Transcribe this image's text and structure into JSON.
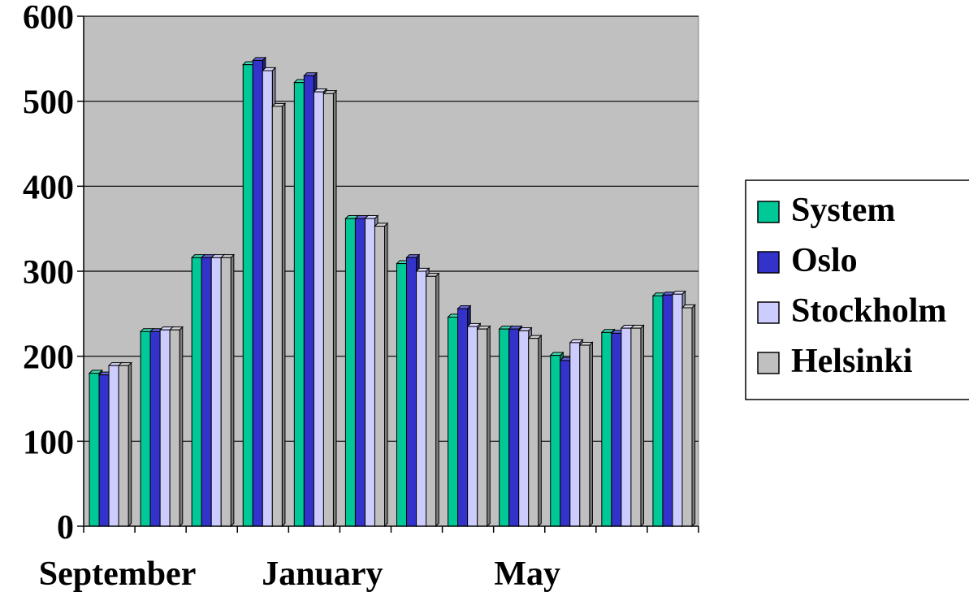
{
  "chart_data": {
    "type": "bar",
    "title": "",
    "xlabel": "",
    "ylabel": "",
    "ylim": [
      0,
      600
    ],
    "y_ticks": [
      "0",
      "100",
      "200",
      "300",
      "400",
      "500",
      "600"
    ],
    "x_tick_labels": [
      {
        "label": "September",
        "category_index": 0
      },
      {
        "label": "January",
        "category_index": 4
      },
      {
        "label": "May",
        "category_index": 8
      }
    ],
    "grid": true,
    "legend_position": "right",
    "plot_background": "#c0c0c0",
    "series": [
      {
        "name": "System",
        "color": "#00c896",
        "values": [
          180,
          229,
          316,
          543,
          522,
          362,
          309,
          246,
          232,
          201,
          228,
          271
        ]
      },
      {
        "name": "Oslo",
        "color": "#3333cc",
        "values": [
          178,
          229,
          316,
          548,
          530,
          362,
          316,
          256,
          232,
          195,
          227,
          272
        ]
      },
      {
        "name": "Stockholm",
        "color": "#ccccff",
        "values": [
          189,
          231,
          316,
          536,
          511,
          362,
          300,
          235,
          230,
          216,
          233,
          273
        ]
      },
      {
        "name": "Helsinki",
        "color": "#c0c0c0",
        "values": [
          189,
          231,
          316,
          494,
          509,
          353,
          294,
          232,
          221,
          213,
          233,
          257
        ]
      }
    ]
  }
}
